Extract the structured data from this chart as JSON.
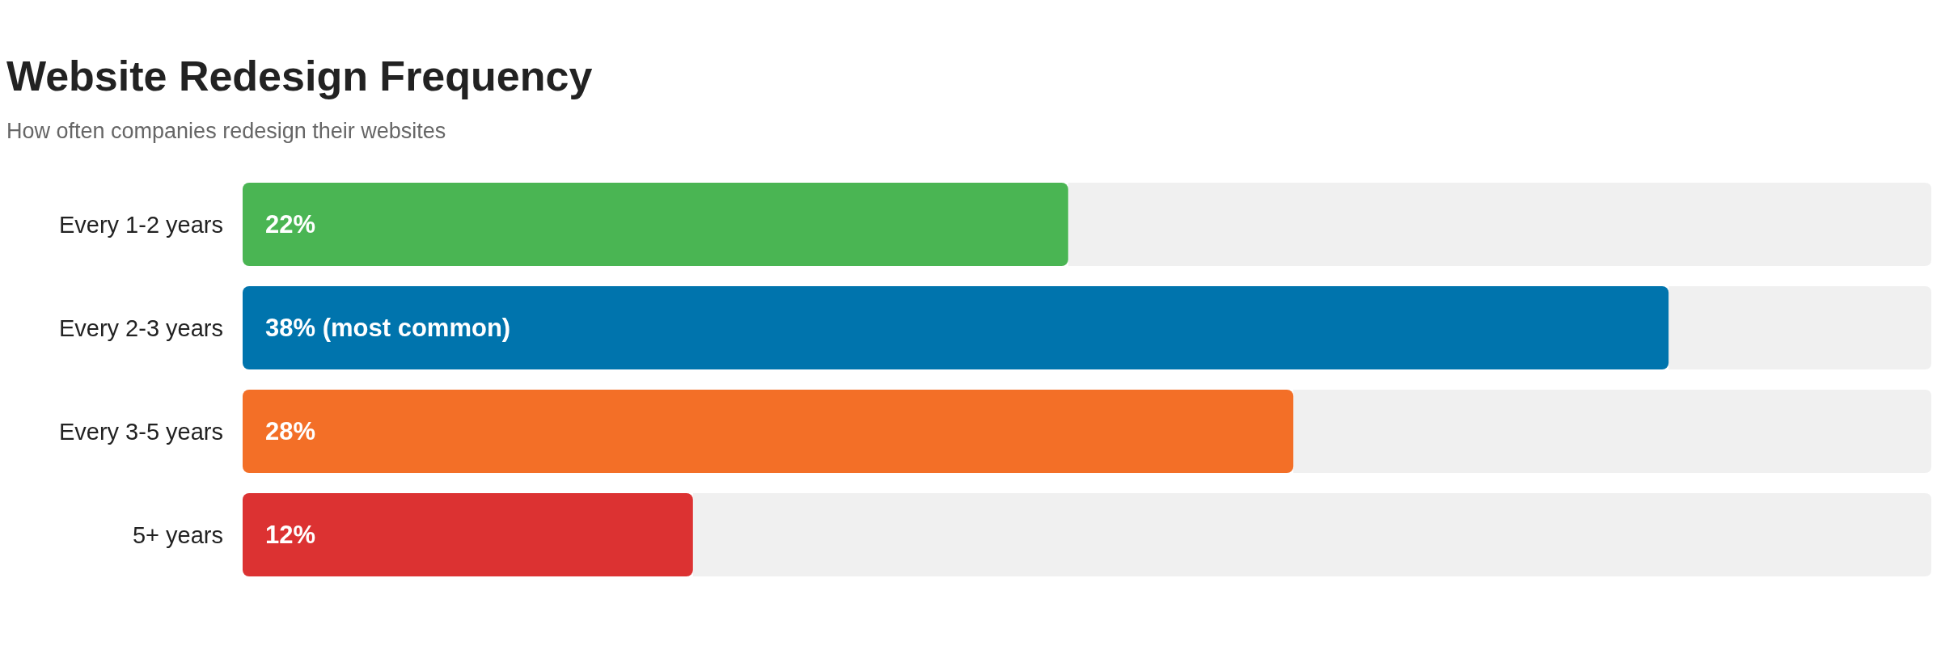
{
  "chart_data": {
    "type": "bar",
    "orientation": "horizontal",
    "title": "Website Redesign Frequency",
    "subtitle": "How often companies redesign their websites",
    "categories": [
      "Every 1-2 years",
      "Every 2-3 years",
      "Every 3-5 years",
      "5+ years"
    ],
    "values": [
      22,
      38,
      28,
      12
    ],
    "colors": [
      "#4ab553",
      "#0074ad",
      "#f36f27",
      "#dc3232"
    ],
    "value_labels": [
      "22%",
      "38% (most common)",
      "28%",
      "12%"
    ],
    "xlim": [
      0,
      45
    ],
    "tick_labels": "y"
  }
}
